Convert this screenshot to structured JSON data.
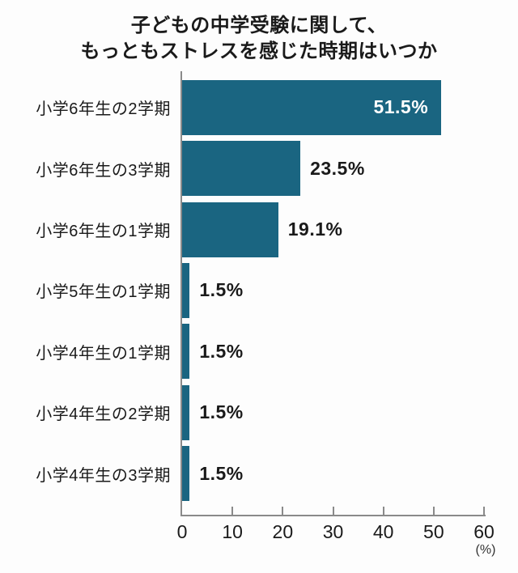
{
  "title": {
    "line1": "子どもの中学受験に関して、",
    "line2": "もっともストレスを感じた時期はいつか"
  },
  "chart_data": {
    "type": "bar",
    "orientation": "horizontal",
    "title": "子どもの中学受験に関して、もっともストレスを感じた時期はいつか",
    "categories": [
      "小学6年生の2学期",
      "小学6年生の3学期",
      "小学6年生の1学期",
      "小学5年生の1学期",
      "小学4年生の1学期",
      "小学4年生の2学期",
      "小学4年生の3学期"
    ],
    "values": [
      51.5,
      23.5,
      19.1,
      1.5,
      1.5,
      1.5,
      1.5
    ],
    "value_labels": [
      "51.5%",
      "23.5%",
      "19.1%",
      "1.5%",
      "1.5%",
      "1.5%",
      "1.5%"
    ],
    "xlim": [
      0,
      60
    ],
    "x_ticks": [
      "0",
      "10",
      "20",
      "30",
      "40",
      "50",
      "60"
    ],
    "x_unit": "(%)",
    "grid": false,
    "legend": "none",
    "colors": {
      "bar": "#1A6581",
      "value_inside_text": "#FFFFFF",
      "value_outside_text": "#1A1A1A",
      "axis": "#8A8A8A",
      "text": "#1A1A1A",
      "background": "#FDFDFD"
    }
  }
}
